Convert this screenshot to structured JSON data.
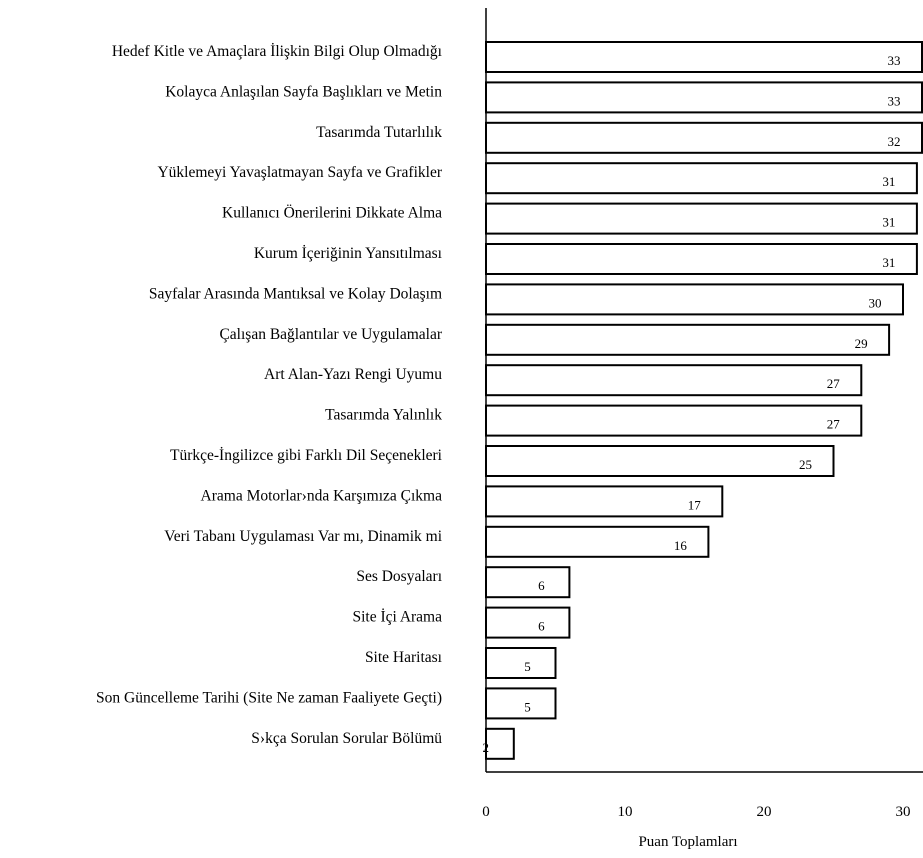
{
  "chart_data": {
    "type": "bar",
    "orientation": "horizontal",
    "title": "",
    "xlabel": "Puan Toplamları",
    "ylabel": "",
    "xlim": [
      0,
      35
    ],
    "xticks": [
      0,
      10,
      20,
      30
    ],
    "grid": false,
    "legend": "none",
    "categories": [
      "Hedef Kitle ve Amaçlara İlişkin Bilgi Olup Olmadığı",
      "Kolayca Anlaşılan Sayfa Başlıkları ve Metin",
      "Tasarımda Tutarlılık",
      "Yüklemeyi Yavaşlatmayan Sayfa ve Grafikler",
      "Kullanıcı Önerilerini Dikkate Alma",
      "Kurum İçeriğinin Yansıtılması",
      "Sayfalar Arasında Mantıksal ve Kolay Dolaşım",
      "Çalışan Bağlantılar ve Uygulamalar",
      "Art Alan-Yazı Rengi Uyumu",
      "Tasarımda Yalınlık",
      "Türkçe-İngilizce gibi Farklı Dil Seçenekleri",
      "Arama Motorlar›nda Karşımıza Çıkma",
      "Veri Tabanı Uygulaması Var mı, Dinamik mi",
      "Ses Dosyaları",
      "Site İçi Arama",
      "Site Haritası",
      "Son Güncelleme Tarihi (Site Ne zaman Faaliyete Geçti)",
      "S›kça Sorulan Sorular Bölümü"
    ],
    "values": [
      33,
      33,
      32,
      31,
      31,
      31,
      30,
      29,
      27,
      27,
      25,
      17,
      16,
      6,
      6,
      5,
      5,
      2
    ],
    "bar_fill": "#ffffff",
    "bar_stroke": "#000000"
  }
}
